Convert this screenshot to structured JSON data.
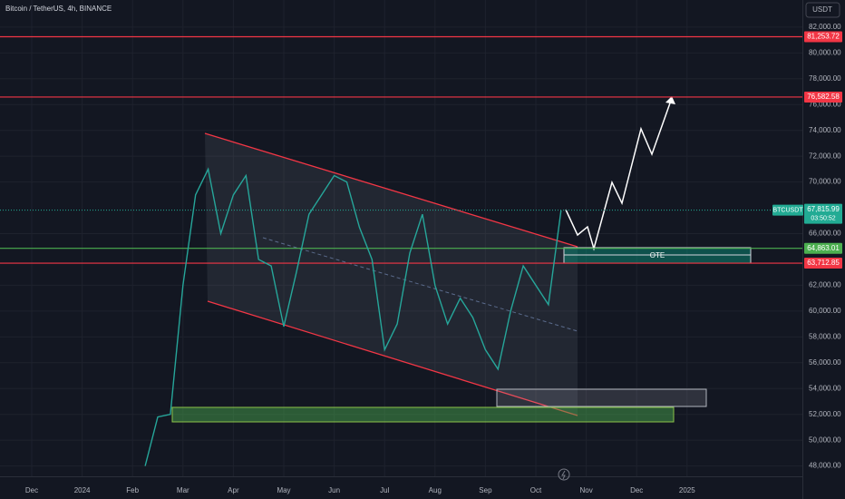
{
  "chart_data": {
    "type": "line",
    "title": "Bitcoin / TetherUS, 4h, BINANCE",
    "currency_button": "USDT",
    "categories": [
      "Dec",
      null,
      null,
      null,
      "2024",
      null,
      null,
      null,
      "Feb",
      null,
      null,
      null,
      "Mar",
      null,
      null,
      null,
      "Apr",
      null,
      null,
      null,
      "May",
      null,
      null,
      null,
      "Jun",
      null,
      null,
      null,
      "Jul",
      null,
      null,
      null,
      "Aug",
      null,
      null,
      null,
      "Sep",
      null,
      null,
      null,
      "Oct",
      null,
      null,
      null,
      "Nov",
      null,
      null,
      null,
      "Dec",
      null,
      null,
      null,
      "2025",
      null
    ],
    "series": [
      {
        "name": "BTCUSDT",
        "color": "#26a69a",
        "values": [
          null,
          null,
          null,
          null,
          null,
          null,
          null,
          null,
          null,
          48000,
          51800,
          52000,
          62000,
          69000,
          71000,
          66000,
          69000,
          70500,
          64000,
          63500,
          58800,
          63000,
          67500,
          69000,
          70500,
          70000,
          66500,
          64000,
          57000,
          59000,
          64500,
          67500,
          62000,
          59000,
          61000,
          59500,
          57000,
          55500,
          60000,
          63500,
          62000,
          60500,
          67800,
          null,
          null,
          null,
          null,
          null,
          null,
          null,
          null,
          null,
          null,
          null
        ]
      }
    ],
    "ylim": [
      47200,
      84100
    ],
    "yticks": [
      {
        "value": 48000,
        "label": "48,000.00"
      },
      {
        "value": 50000,
        "label": "50,000.00"
      },
      {
        "value": 52000,
        "label": "52,000.00"
      },
      {
        "value": 54000,
        "label": "54,000.00"
      },
      {
        "value": 56000,
        "label": "56,000.00"
      },
      {
        "value": 58000,
        "label": "58,000.00"
      },
      {
        "value": 60000,
        "label": "60,000.00"
      },
      {
        "value": 62000,
        "label": "62,000.00"
      },
      {
        "value": 66000,
        "label": "66,000.00"
      },
      {
        "value": 70000,
        "label": "70,000.00"
      },
      {
        "value": 72000,
        "label": "72,000.00"
      },
      {
        "value": 74000,
        "label": "74,000.00"
      },
      {
        "value": 76000,
        "label": "76,000.00"
      },
      {
        "value": 78000,
        "label": "78,000.00"
      },
      {
        "value": 80000,
        "label": "80,000.00"
      },
      {
        "value": 82000,
        "label": "82,000.00"
      }
    ],
    "levels": [
      {
        "value": 81253.72,
        "label": "81,253.72",
        "color": "#f23645"
      },
      {
        "value": 76582.58,
        "label": "76,582.58",
        "color": "#f23645"
      },
      {
        "value": 64863.01,
        "label": "64,863.01",
        "color": "#4caf50"
      },
      {
        "value": 63712.85,
        "label": "63,712.85",
        "color": "#f23645"
      }
    ],
    "last_price": {
      "symbol": "BTCUSDT",
      "value": 67815.99,
      "label": "67,815.99",
      "countdown": "03:50:52",
      "color": "#22ab94"
    },
    "zone_label": "OTE"
  }
}
